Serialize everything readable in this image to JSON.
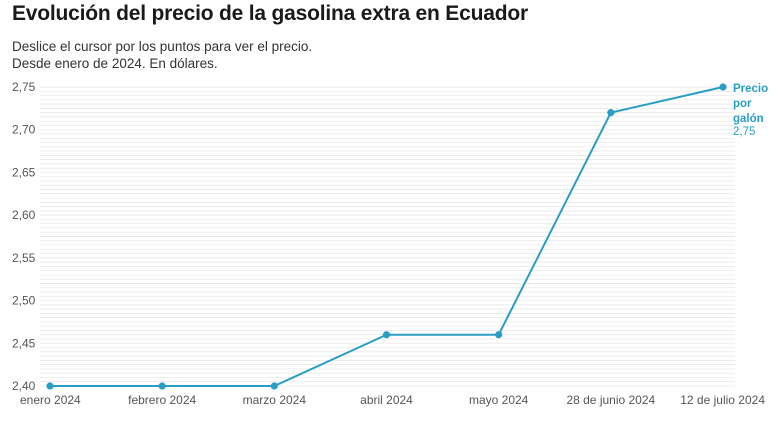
{
  "header": {
    "title": "Evolución del precio de la gasolina extra en Ecuador",
    "subtitle_line1": "Deslice el cursor por los puntos para ver el precio.",
    "subtitle_line2": "Desde enero de 2024. En dólares."
  },
  "colors": {
    "line": "#2a9dc4",
    "grid": "#e6e6e6",
    "axis_text": "#555555"
  },
  "chart_data": {
    "type": "line",
    "title": "Evolución del precio de la gasolina extra en Ecuador",
    "xlabel": "",
    "ylabel": "",
    "categories": [
      "enero 2024",
      "febrero 2024",
      "marzo 2024",
      "abril 2024",
      "mayo 2024",
      "28 de junio 2024",
      "12 de julio 2024"
    ],
    "series": [
      {
        "name": "Precio por galón",
        "values": [
          2.4,
          2.4,
          2.4,
          2.46,
          2.46,
          2.72,
          2.75
        ]
      }
    ],
    "ylim": [
      2.4,
      2.75
    ],
    "yticks": [
      2.4,
      2.45,
      2.5,
      2.55,
      2.6,
      2.65,
      2.7,
      2.75
    ],
    "ytick_labels": [
      "2,40",
      "2,45",
      "2,50",
      "2,55",
      "2,60",
      "2,65",
      "2,70",
      "2,75"
    ],
    "end_label": {
      "line1": "Precio",
      "line2": "por",
      "line3": "galón",
      "value": "2,75"
    },
    "grid": true
  }
}
